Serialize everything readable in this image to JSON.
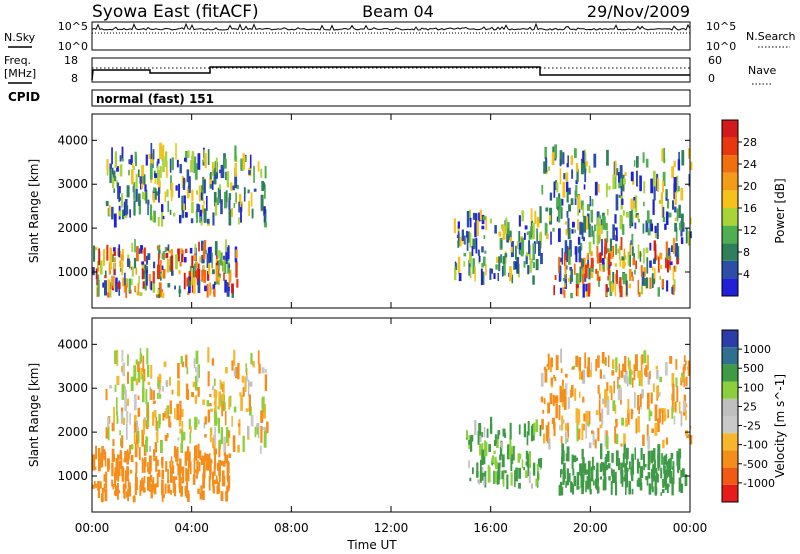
{
  "header": {
    "title": "Syowa East (fitACF)",
    "beam": "Beam 04",
    "date": "29/Nov/2009"
  },
  "strips": {
    "nsky_label": "N.Sky",
    "nsearch_label": "N.Search",
    "nsky_ticks": [
      "10^5",
      "10^0"
    ],
    "nsearch_ticks": [
      "10^5",
      "10^0"
    ],
    "freq_label": "Freq.",
    "freq_unit": "[MHz]",
    "freq_ticks": [
      "18",
      "8"
    ],
    "nave_label": "Nave",
    "nave_ticks": [
      "60",
      "0"
    ],
    "cpid_label": "CPID",
    "cpid_value": "normal (fast) 151"
  },
  "colors": {
    "power_scale": [
      "#2020d8",
      "#2b4ea6",
      "#2f7f5a",
      "#4fae4f",
      "#a8d437",
      "#f4c21a",
      "#f59b1a",
      "#f0700f",
      "#e8360f",
      "#d21a1a"
    ],
    "velocity_scale": [
      "#e81b1b",
      "#f15a14",
      "#f58d1a",
      "#f6b52a",
      "#c9c9c9",
      "#bfbfbf",
      "#8ccf3c",
      "#3f9a46",
      "#2f6f8f",
      "#2d3da8"
    ]
  },
  "chart_data": [
    {
      "type": "heatmap",
      "name": "power",
      "ylabel": "Slant Range [km]",
      "colorbar_label": "Power [dB]",
      "colorbar_ticks": [
        "28",
        "24",
        "20",
        "16",
        "12",
        "8",
        "4"
      ],
      "ylim": [
        180,
        4600
      ],
      "yticks": [
        1000,
        2000,
        3000,
        4000
      ],
      "xlim": [
        0,
        24
      ],
      "x_unit": "hours UT",
      "echo_regions": [
        {
          "t0": 0.0,
          "t1": 5.8,
          "r0": 400,
          "r1": 1500
        },
        {
          "t0": 0.5,
          "t1": 7.0,
          "r0": 2000,
          "r1": 3600
        },
        {
          "t0": 14.5,
          "t1": 18.0,
          "r0": 700,
          "r1": 2200
        },
        {
          "t0": 18.5,
          "t1": 23.5,
          "r0": 400,
          "r1": 1500
        },
        {
          "t0": 18.0,
          "t1": 24.0,
          "r0": 1600,
          "r1": 3600
        }
      ]
    },
    {
      "type": "heatmap",
      "name": "velocity",
      "ylabel": "Slant Range [km]",
      "xlabel": "Time UT",
      "colorbar_label": "Velocity [m s^-1]",
      "colorbar_ticks": [
        "1000",
        "500",
        "100",
        "25",
        "-25",
        "-100",
        "-500",
        "-1000"
      ],
      "ylim": [
        180,
        4600
      ],
      "yticks": [
        1000,
        2000,
        3000,
        4000
      ],
      "xlim": [
        0,
        24
      ],
      "xtick_labels": [
        "00:00",
        "04:00",
        "08:00",
        "12:00",
        "16:00",
        "20:00",
        "00:00"
      ],
      "echo_regions": [
        {
          "t0": 0.0,
          "t1": 5.5,
          "r0": 400,
          "r1": 1500,
          "v": -300
        },
        {
          "t0": 0.5,
          "t1": 7.0,
          "r0": 1500,
          "r1": 3600,
          "v": -50
        },
        {
          "t0": 15.0,
          "t1": 18.0,
          "r0": 700,
          "r1": 2000,
          "v": 150
        },
        {
          "t0": 18.7,
          "t1": 23.8,
          "r0": 550,
          "r1": 1400,
          "v": 250
        },
        {
          "t0": 18.0,
          "t1": 24.0,
          "r0": 1600,
          "r1": 3600,
          "v": -100
        }
      ]
    }
  ]
}
